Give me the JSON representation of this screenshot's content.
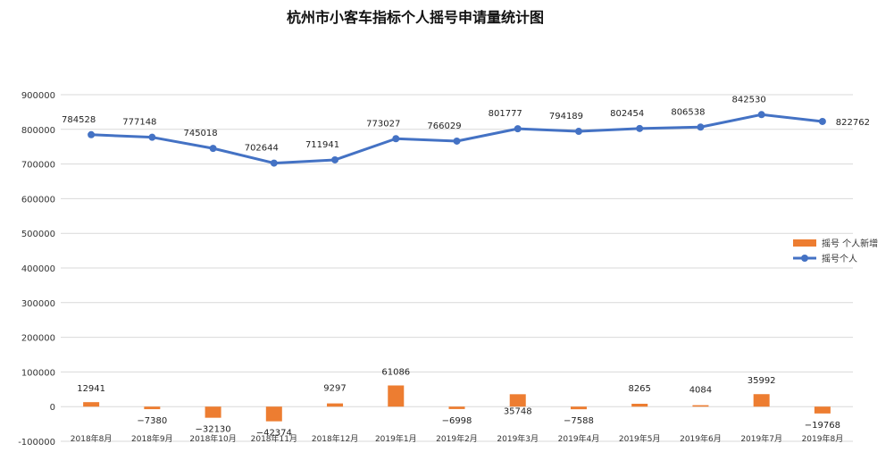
{
  "chart_data": {
    "type": "bar+line",
    "title": "杭州市小客车指标个人摇号申请量统计图",
    "categories": [
      "2018年8月",
      "2018年9月",
      "2018年10月",
      "2018年11月",
      "2018年12月",
      "2019年1月",
      "2019年2月",
      "2019年3月",
      "2019年4月",
      "2019年5月",
      "2019年6月",
      "2019年7月",
      "2019年8月"
    ],
    "series": [
      {
        "name": "摇号 个人新增",
        "type": "bar",
        "color": "#ED7D31",
        "values": [
          12941,
          -7380,
          -32130,
          -42374,
          9297,
          61086,
          -6998,
          35748,
          -7588,
          8265,
          4084,
          35992,
          -19768
        ]
      },
      {
        "name": "摇号个人",
        "type": "line",
        "color": "#4472C4",
        "values": [
          784528,
          777148,
          745018,
          702644,
          711941,
          773027,
          766029,
          801777,
          794189,
          802454,
          806538,
          842530,
          822762
        ]
      }
    ],
    "ylim": [
      -100000,
      900000
    ],
    "yticks": [
      "-100000",
      "0",
      "100000",
      "200000",
      "300000",
      "400000",
      "500000",
      "600000",
      "700000",
      "800000",
      "900000"
    ],
    "grid": true,
    "legend_position": "right"
  }
}
